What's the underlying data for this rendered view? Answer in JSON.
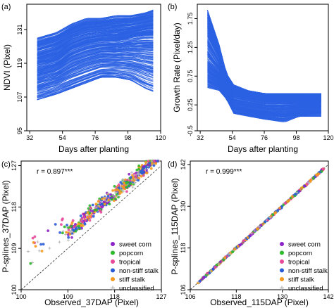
{
  "chart_data": [
    {
      "panel_label": "(a)",
      "type": "line",
      "xlabel": "Days after planting",
      "ylabel": "NDVI (Pixel)",
      "xlim": [
        30,
        120
      ],
      "ylim": [
        95,
        140
      ],
      "xticks": [
        32,
        54,
        76,
        98,
        120
      ],
      "yticks": [
        95,
        107,
        119,
        131
      ],
      "line_color": "#2b62e3",
      "series_summary": {
        "x": [
          37,
          50,
          60,
          70,
          80,
          90,
          100,
          110,
          115
        ],
        "upper": [
          128,
          130,
          133,
          135,
          135,
          136,
          136,
          137,
          138
        ],
        "middle": [
          118,
          120,
          124,
          126,
          127,
          127,
          128,
          129,
          129
        ],
        "lower": [
          106,
          108,
          110,
          112,
          114,
          114,
          113,
          110,
          109
        ]
      }
    },
    {
      "panel_label": "(b)",
      "type": "line",
      "xlabel": "Days after planting",
      "ylabel": "Growth Rate (Pixel/day)",
      "xlim": [
        30,
        120
      ],
      "ylim": [
        -0.2,
        2.0
      ],
      "xticks": [
        32,
        54,
        76,
        98,
        120
      ],
      "yticks": [
        -0.5,
        0.25,
        0.75,
        1.25,
        1.75
      ],
      "ytick_labels": [
        "-0.5",
        "0.25",
        "0.75",
        "1.25",
        "1.75"
      ],
      "line_color": "#2b62e3",
      "series_summary": {
        "x": [
          37,
          45,
          50,
          55,
          65,
          76,
          90,
          100,
          115
        ],
        "upper": [
          1.9,
          1.3,
          0.8,
          0.6,
          0.5,
          0.45,
          0.45,
          0.45,
          0.45
        ],
        "middle": [
          1.0,
          0.8,
          0.55,
          0.4,
          0.35,
          0.3,
          0.3,
          0.3,
          0.3
        ],
        "lower": [
          0.55,
          0.5,
          0.35,
          0.1,
          0.05,
          0.0,
          -0.05,
          0.05,
          0.05
        ]
      }
    },
    {
      "panel_label": "(c)",
      "type": "scatter",
      "xlabel": "Observed_37DAP (Pixel)",
      "ylabel": "P-splines_37DAP (Pixel)",
      "xlim": [
        100,
        127
      ],
      "ylim": [
        100,
        128
      ],
      "xticks": [
        100,
        109,
        118,
        127
      ],
      "yticks": [
        100,
        109,
        118,
        127
      ],
      "annotation": "r = 0.897***",
      "reference_line": "y = x (dashed)"
    },
    {
      "panel_label": "(d)",
      "type": "scatter",
      "xlabel": "Observed_115DAP (Pixel)",
      "ylabel": "P-splines_115DAP (Pixel)",
      "xlim": [
        106,
        142
      ],
      "ylim": [
        106,
        143
      ],
      "xticks": [
        106,
        118,
        130,
        142
      ],
      "yticks": [
        106,
        118,
        130,
        142
      ],
      "annotation": "r = 0.999***",
      "reference_line": "y = x (dashed)"
    }
  ],
  "legend": [
    {
      "label": "sweet corn",
      "color": "#8e22c9",
      "marker": "dot"
    },
    {
      "label": "popcorn",
      "color": "#2eb82e",
      "marker": "dot"
    },
    {
      "label": "tropical",
      "color": "#e8489b",
      "marker": "dot"
    },
    {
      "label": "non-stiff stalk",
      "color": "#2a5bd7",
      "marker": "dot"
    },
    {
      "label": "stiff stalk",
      "color": "#f59a1e",
      "marker": "dot"
    },
    {
      "label": "unclassified",
      "color": "#b5b5b5",
      "marker": "plus"
    }
  ]
}
